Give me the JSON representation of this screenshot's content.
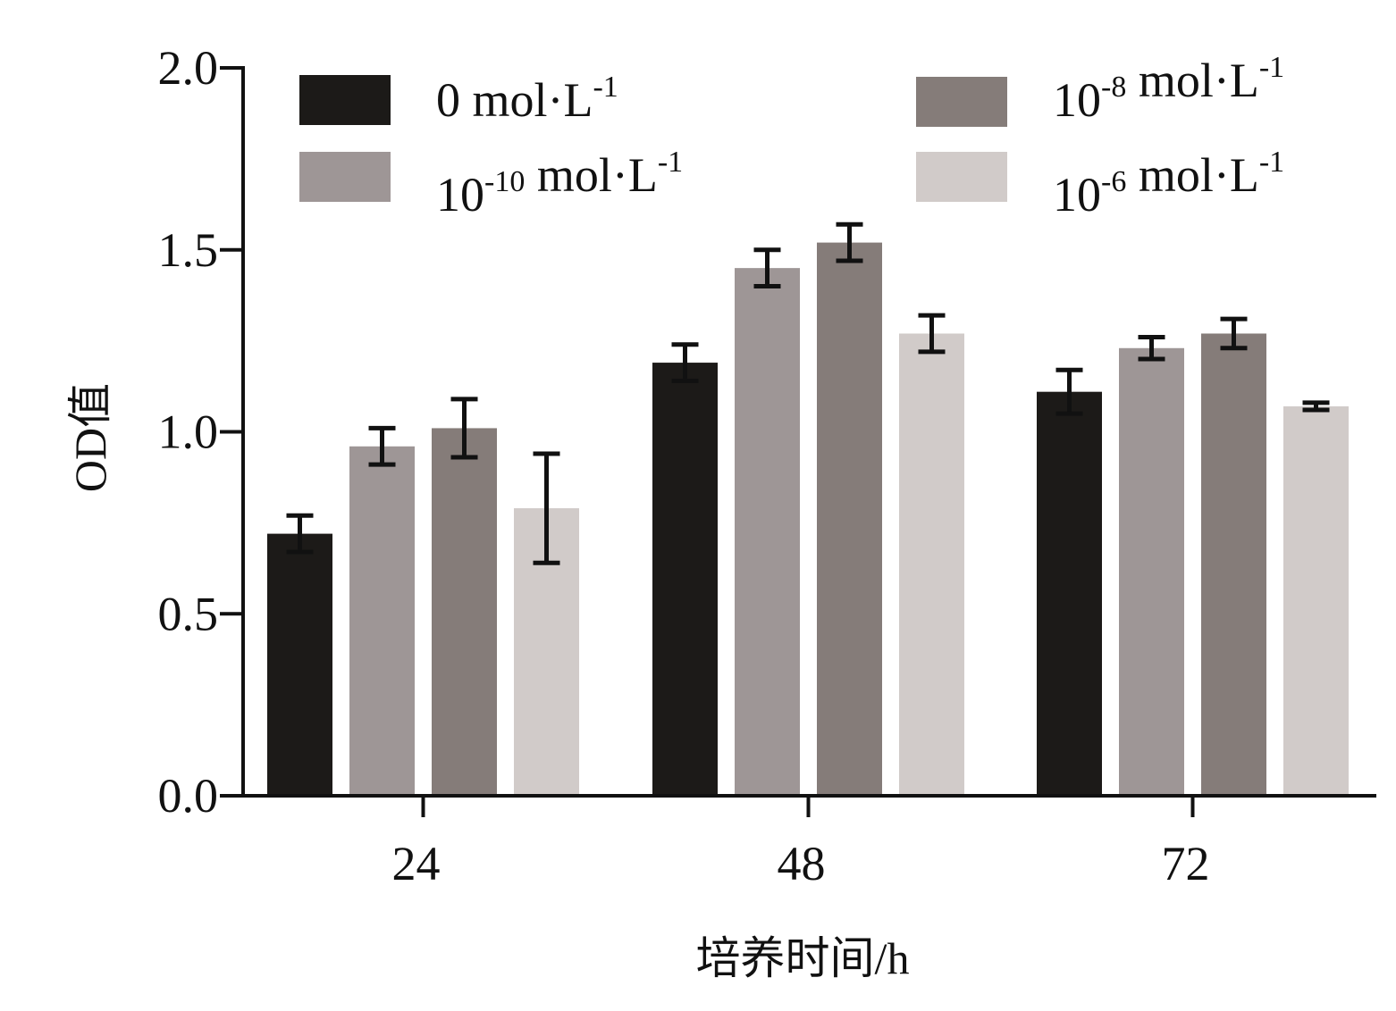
{
  "chart_data": {
    "type": "bar",
    "title": "",
    "xlabel": "培养时间/h",
    "ylabel": "OD值",
    "ylim": [
      0,
      2.0
    ],
    "yticks": [
      "0.0",
      "0.5",
      "1.0",
      "1.5",
      "2.0"
    ],
    "categories": [
      "24",
      "48",
      "72"
    ],
    "grid": false,
    "legend_position": "top",
    "series": [
      {
        "name": "0 mol·L-1",
        "legend_base": "0",
        "legend_exp": "",
        "legend_unit": "mol·L",
        "legend_unit_exp": "-1",
        "color": "#1c1a18",
        "values": [
          0.72,
          1.19,
          1.11
        ],
        "errors": [
          0.05,
          0.05,
          0.06
        ]
      },
      {
        "name": "10-10 mol·L-1",
        "legend_base": "10",
        "legend_exp": "-10",
        "legend_unit": "mol·L",
        "legend_unit_exp": "-1",
        "color": "#9e9696",
        "values": [
          0.96,
          1.45,
          1.23
        ],
        "errors": [
          0.05,
          0.05,
          0.03
        ]
      },
      {
        "name": "10-8 mol·L-1",
        "legend_base": "10",
        "legend_exp": "-8",
        "legend_unit": "mol·L",
        "legend_unit_exp": "-1",
        "color": "#857c79",
        "values": [
          1.01,
          1.52,
          1.27
        ],
        "errors": [
          0.08,
          0.05,
          0.04
        ]
      },
      {
        "name": "10-6 mol·L-1",
        "legend_base": "10",
        "legend_exp": "-6",
        "legend_unit": "mol·L",
        "legend_unit_exp": "-1",
        "color": "#d1cbc9",
        "values": [
          0.79,
          1.27,
          1.07
        ],
        "errors": [
          0.15,
          0.05,
          0.01
        ]
      }
    ]
  }
}
